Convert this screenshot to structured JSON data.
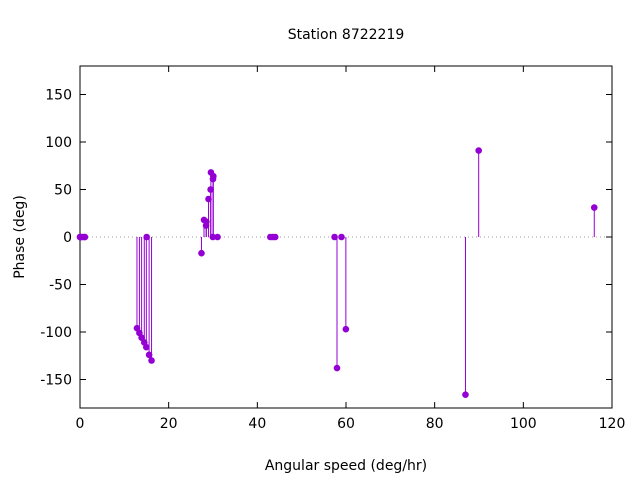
{
  "chart_data": {
    "type": "scatter",
    "style": "impulse",
    "title": "Station 8722219",
    "xlabel": "Angular speed (deg/hr)",
    "ylabel": "Phase (deg)",
    "xlim": [
      0,
      120
    ],
    "ylim": [
      -180,
      180
    ],
    "xticks": [
      0,
      20,
      40,
      60,
      80,
      100,
      120
    ],
    "yticks": [
      -150,
      -100,
      -50,
      0,
      50,
      100,
      150
    ],
    "grid": false,
    "zero_line": true,
    "color": "#9400D3",
    "points": [
      {
        "x": 0.0,
        "y": 0
      },
      {
        "x": 0.04,
        "y": 0
      },
      {
        "x": 0.08,
        "y": 0
      },
      {
        "x": 0.14,
        "y": 0
      },
      {
        "x": 0.55,
        "y": 0
      },
      {
        "x": 1.02,
        "y": 0
      },
      {
        "x": 1.1,
        "y": 0
      },
      {
        "x": 12.85,
        "y": -96
      },
      {
        "x": 13.4,
        "y": -101
      },
      {
        "x": 13.9,
        "y": -106
      },
      {
        "x": 14.5,
        "y": -111
      },
      {
        "x": 14.96,
        "y": -116
      },
      {
        "x": 15.04,
        "y": 0
      },
      {
        "x": 15.59,
        "y": -124
      },
      {
        "x": 16.14,
        "y": -130
      },
      {
        "x": 27.4,
        "y": -17
      },
      {
        "x": 27.97,
        "y": 18
      },
      {
        "x": 28.44,
        "y": 12
      },
      {
        "x": 28.51,
        "y": 16
      },
      {
        "x": 28.99,
        "y": 40
      },
      {
        "x": 29.46,
        "y": 50
      },
      {
        "x": 29.53,
        "y": 68
      },
      {
        "x": 29.96,
        "y": 0
      },
      {
        "x": 30.0,
        "y": 61
      },
      {
        "x": 30.08,
        "y": 64
      },
      {
        "x": 31.02,
        "y": 0
      },
      {
        "x": 42.93,
        "y": 0
      },
      {
        "x": 43.48,
        "y": 0
      },
      {
        "x": 44.03,
        "y": 0
      },
      {
        "x": 57.42,
        "y": 0
      },
      {
        "x": 57.97,
        "y": -138
      },
      {
        "x": 58.98,
        "y": 0
      },
      {
        "x": 59.97,
        "y": -97
      },
      {
        "x": 86.95,
        "y": -166
      },
      {
        "x": 89.93,
        "y": 91
      },
      {
        "x": 116.0,
        "y": 31
      }
    ]
  }
}
